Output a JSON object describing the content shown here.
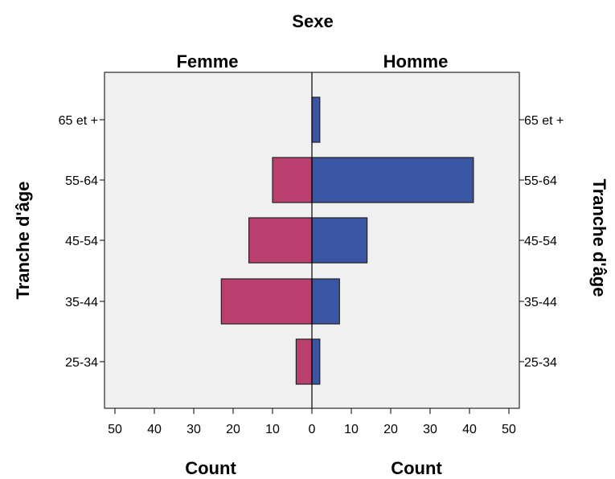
{
  "chart_data": {
    "type": "bar",
    "orientation": "horizontal",
    "layout": "population-pyramid",
    "title": "Sexe",
    "categories": [
      "25-34",
      "35-44",
      "45-54",
      "55-64",
      "65 et +"
    ],
    "series": [
      {
        "name": "Femme",
        "values": [
          4,
          23,
          16,
          10,
          0
        ],
        "color": "#b9406e"
      },
      {
        "name": "Homme",
        "values": [
          2,
          7,
          14,
          41,
          2
        ],
        "color": "#3a55a4"
      }
    ],
    "y_axis": {
      "label": "Tranche d'âge",
      "label_right": "Tranche d'âge"
    },
    "x_axis": {
      "label_left": "Count",
      "label_right": "Count",
      "range": [
        0,
        50
      ],
      "ticks": [
        "0",
        "10",
        "20",
        "30",
        "40",
        "50"
      ]
    },
    "plot_background": "#f0f0f0",
    "grid": false
  }
}
